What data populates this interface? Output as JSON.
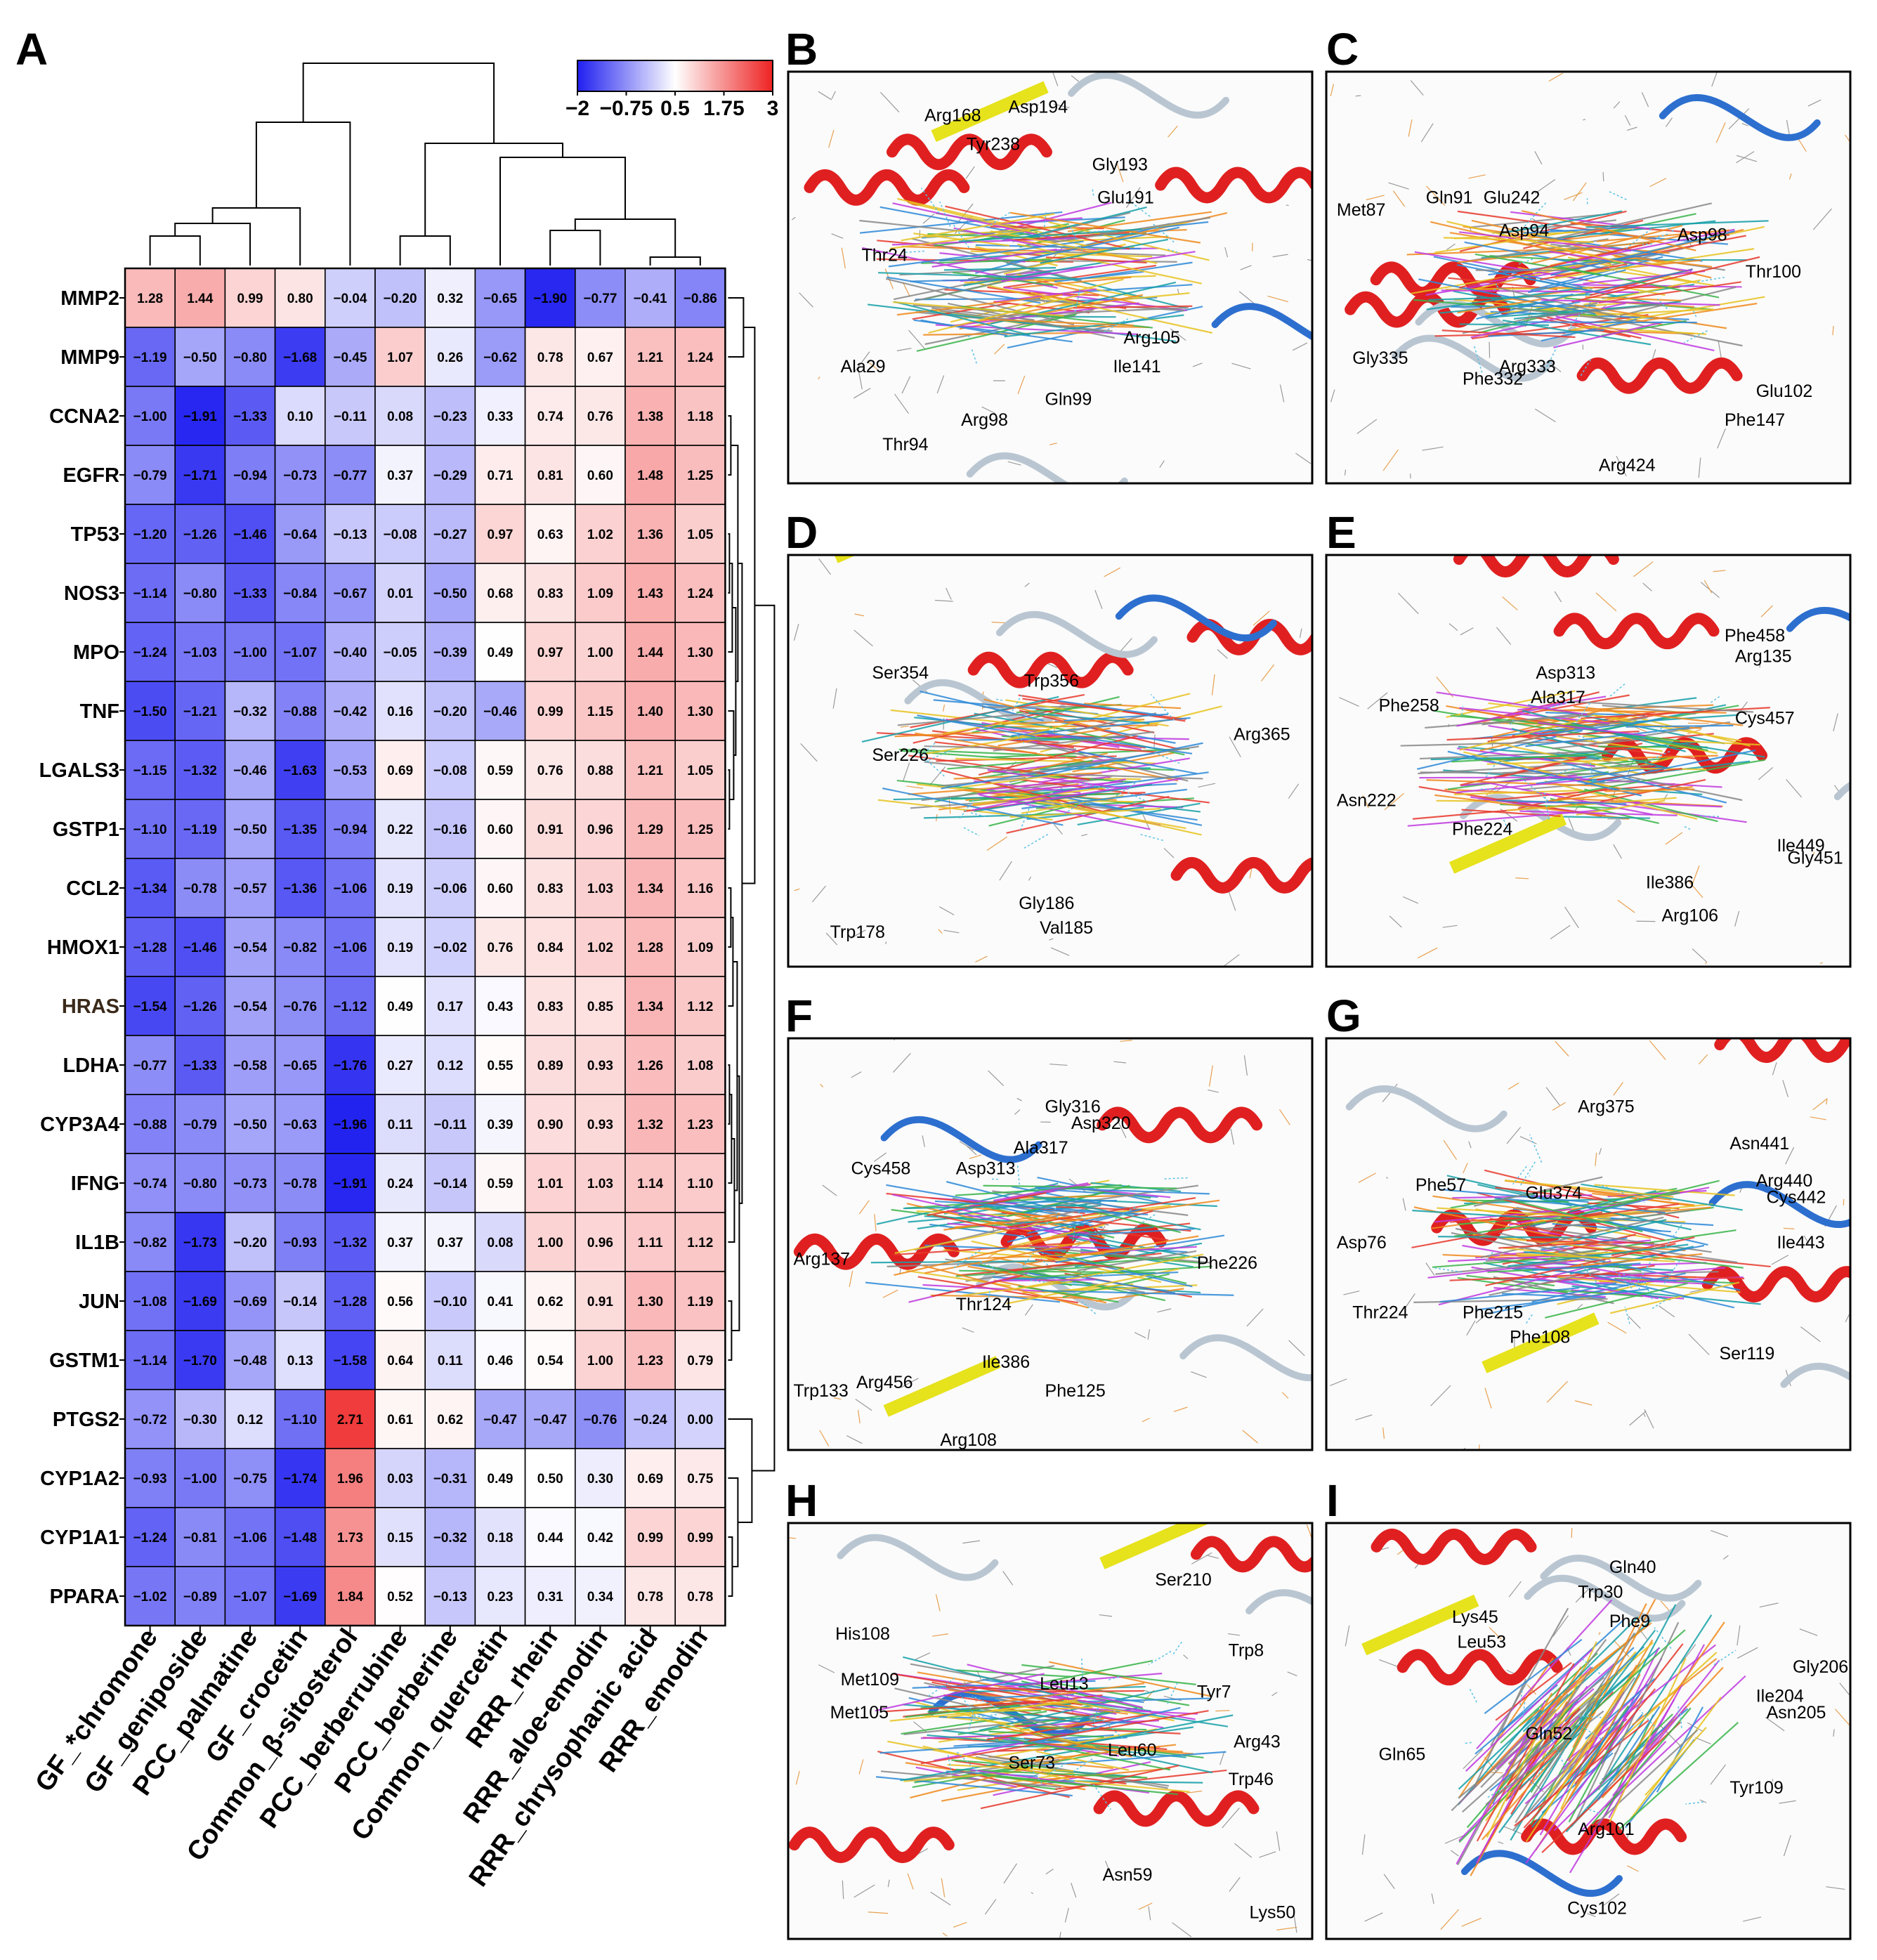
{
  "panel_labels": [
    "A",
    "B",
    "C",
    "D",
    "E",
    "F",
    "G",
    "H",
    "I"
  ],
  "chart_data": {
    "type": "heatmap",
    "title": "",
    "rows": [
      "MMP2",
      "MMP9",
      "CCNA2",
      "EGFR",
      "TP53",
      "NOS3",
      "MPO",
      "TNF",
      "LGALS3",
      "GSTP1",
      "CCL2",
      "HMOX1",
      "HRAS",
      "LDHA",
      "CYP3A4",
      "IFNG",
      "IL1B",
      "JUN",
      "GSTM1",
      "PTGS2",
      "CYP1A2",
      "CYP1A1",
      "PPARA"
    ],
    "columns": [
      "GF_*chromone",
      "GF_geniposide",
      "PCC_palmatine",
      "GF_crocetin",
      "Common_β-sitosterol",
      "PCC_berberrubine",
      "PCC_berberine",
      "Common_quercetin",
      "RRR_rhein",
      "RRR_aloe-emodin",
      "RRR_chrysophanic acid",
      "RRR_emodin"
    ],
    "values": [
      [
        1.28,
        1.44,
        0.99,
        0.8,
        -0.04,
        -0.2,
        0.32,
        -0.65,
        -1.9,
        -0.77,
        -0.41,
        -0.86
      ],
      [
        -1.19,
        -0.5,
        -0.8,
        -1.68,
        -0.45,
        1.07,
        0.26,
        -0.62,
        0.78,
        0.67,
        1.21,
        1.24
      ],
      [
        -1.0,
        -1.91,
        -1.33,
        0.1,
        -0.11,
        0.08,
        -0.23,
        0.33,
        0.74,
        0.76,
        1.38,
        1.18
      ],
      [
        -0.79,
        -1.71,
        -0.94,
        -0.73,
        -0.77,
        0.37,
        -0.29,
        0.71,
        0.81,
        0.6,
        1.48,
        1.25
      ],
      [
        -1.2,
        -1.26,
        -1.46,
        -0.64,
        -0.13,
        -0.08,
        -0.27,
        0.97,
        0.63,
        1.02,
        1.36,
        1.05
      ],
      [
        -1.14,
        -0.8,
        -1.33,
        -0.84,
        -0.67,
        0.01,
        -0.5,
        0.68,
        0.83,
        1.09,
        1.43,
        1.24
      ],
      [
        -1.24,
        -1.03,
        -1.0,
        -1.07,
        -0.4,
        -0.05,
        -0.39,
        0.49,
        0.97,
        1.0,
        1.44,
        1.3
      ],
      [
        -1.5,
        -1.21,
        -0.32,
        -0.88,
        -0.42,
        0.16,
        -0.2,
        -0.46,
        0.99,
        1.15,
        1.4,
        1.3
      ],
      [
        -1.15,
        -1.32,
        -0.46,
        -1.63,
        -0.53,
        0.69,
        -0.08,
        0.59,
        0.76,
        0.88,
        1.21,
        1.05
      ],
      [
        -1.1,
        -1.19,
        -0.5,
        -1.35,
        -0.94,
        0.22,
        -0.16,
        0.6,
        0.91,
        0.96,
        1.29,
        1.25
      ],
      [
        -1.34,
        -0.78,
        -0.57,
        -1.36,
        -1.06,
        0.19,
        -0.06,
        0.6,
        0.83,
        1.03,
        1.34,
        1.16
      ],
      [
        -1.28,
        -1.46,
        -0.54,
        -0.82,
        -1.06,
        0.19,
        -0.02,
        0.76,
        0.84,
        1.02,
        1.28,
        1.09
      ],
      [
        -1.54,
        -1.26,
        -0.54,
        -0.76,
        -1.12,
        0.49,
        0.17,
        0.43,
        0.83,
        0.85,
        1.34,
        1.12
      ],
      [
        -0.77,
        -1.33,
        -0.58,
        -0.65,
        -1.76,
        0.27,
        0.12,
        0.55,
        0.89,
        0.93,
        1.26,
        1.08
      ],
      [
        -0.88,
        -0.79,
        -0.5,
        -0.63,
        -1.96,
        0.11,
        -0.11,
        0.39,
        0.9,
        0.93,
        1.32,
        1.23
      ],
      [
        -0.74,
        -0.8,
        -0.73,
        -0.78,
        -1.91,
        0.24,
        -0.14,
        0.59,
        1.01,
        1.03,
        1.14,
        1.1
      ],
      [
        -0.82,
        -1.73,
        -0.2,
        -0.93,
        -1.32,
        0.37,
        0.37,
        0.08,
        1.0,
        0.96,
        1.11,
        1.12
      ],
      [
        -1.08,
        -1.69,
        -0.69,
        -0.14,
        -1.28,
        0.56,
        -0.1,
        0.41,
        0.62,
        0.91,
        1.3,
        1.19
      ],
      [
        -1.14,
        -1.7,
        -0.48,
        0.13,
        -1.58,
        0.64,
        0.11,
        0.46,
        0.54,
        1.0,
        1.23,
        0.79
      ],
      [
        -0.72,
        -0.3,
        0.12,
        -1.1,
        2.71,
        0.61,
        0.62,
        -0.47,
        -0.47,
        -0.76,
        -0.24,
        0.0
      ],
      [
        -0.93,
        -1.0,
        -0.75,
        -1.74,
        1.96,
        0.03,
        -0.31,
        0.49,
        0.5,
        0.3,
        0.69,
        0.75
      ],
      [
        -1.24,
        -0.81,
        -1.06,
        -1.48,
        1.73,
        0.15,
        -0.32,
        0.18,
        0.44,
        0.42,
        0.99,
        0.99
      ],
      [
        -1.02,
        -0.89,
        -1.07,
        -1.69,
        1.84,
        0.52,
        -0.13,
        0.23,
        0.31,
        0.34,
        0.78,
        0.78
      ]
    ],
    "color_scale": {
      "range": [
        -2,
        3
      ],
      "ticks": [
        "−2",
        "−0.75",
        "0.5",
        "1.75",
        "3"
      ],
      "low_color": "#1f1ff0",
      "mid_color": "#ffffff",
      "high_color": "#ee2222",
      "mid_value": 0.5
    },
    "legend_position": "top-right"
  },
  "docking_panels": [
    {
      "label": "B",
      "residues": [
        "Arg168",
        "Asp194",
        "Tyr238",
        "Gly193",
        "Glu191",
        "Thr24",
        "Arg105",
        "Ile141",
        "Ala29",
        "Gln99",
        "Arg98",
        "Thr94"
      ]
    },
    {
      "label": "C",
      "residues": [
        "Met87",
        "Gln91",
        "Glu242",
        "Asp94",
        "Asp98",
        "Thr100",
        "Gly335",
        "Phe332",
        "Arg333",
        "Glu102",
        "Phe147",
        "Arg424"
      ]
    },
    {
      "label": "D",
      "residues": [
        "Ser354",
        "Trp356",
        "Arg365",
        "Ser226",
        "Trp178",
        "Gly186",
        "Val185"
      ]
    },
    {
      "label": "E",
      "residues": [
        "Asp313",
        "Ala317",
        "Phe458",
        "Arg135",
        "Phe258",
        "Cys457",
        "Asn222",
        "Phe224",
        "Ile449",
        "Gly451",
        "Ile386",
        "Arg106"
      ]
    },
    {
      "label": "F",
      "residues": [
        "Gly316",
        "Asp320",
        "Ala317",
        "Cys458",
        "Asp313",
        "Phe226",
        "Arg137",
        "Thr124",
        "Ile386",
        "Trp133",
        "Arg456",
        "Phe125",
        "Arg108"
      ]
    },
    {
      "label": "G",
      "residues": [
        "Arg375",
        "Asn441",
        "Arg440",
        "Phe57",
        "Glu374",
        "Cys442",
        "Asp76",
        "Ile443",
        "Thr224",
        "Phe215",
        "Phe108",
        "Ser119"
      ]
    },
    {
      "label": "H",
      "residues": [
        "Ser210",
        "His108",
        "Trp8",
        "Met109",
        "Leu13",
        "Tyr7",
        "Met105",
        "Arg43",
        "Ser73",
        "Leu60",
        "Trp46",
        "Asn59",
        "Lys50"
      ]
    },
    {
      "label": "I",
      "residues": [
        "Gln40",
        "Trp30",
        "Lys45",
        "Phe9",
        "Leu53",
        "Gly206",
        "Ile204",
        "Asn205",
        "Gln52",
        "Gln65",
        "Tyr109",
        "Arg101",
        "Cys102"
      ]
    }
  ]
}
